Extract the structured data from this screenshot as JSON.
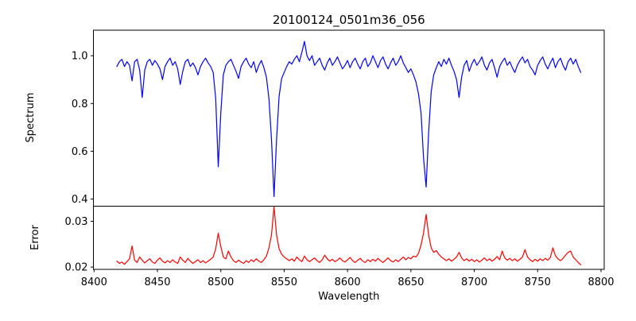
{
  "figure": {
    "background": "#ffffff",
    "frame_color": "#000000",
    "text_color": "#000000"
  },
  "chart_data": [
    {
      "type": "line",
      "series_name": "spectrum",
      "title": "20100124_0501m36_056",
      "ylabel": "Spectrum",
      "line_color": "#0000ff",
      "grid": false,
      "legend": "none",
      "xlim": [
        8399.5,
        8802.5
      ],
      "ylim": [
        0.37,
        1.107
      ],
      "ytick_values": [
        1.0,
        0.8,
        0.6,
        0.4
      ],
      "ytick_labels": [
        "1.0",
        "0.8",
        "0.6",
        "0.4"
      ],
      "x_start": 8418,
      "x_step": 2,
      "y": [
        0.955,
        0.975,
        0.985,
        0.955,
        0.975,
        0.96,
        0.895,
        0.975,
        0.985,
        0.94,
        0.825,
        0.94,
        0.975,
        0.985,
        0.96,
        0.98,
        0.965,
        0.945,
        0.9,
        0.955,
        0.975,
        0.99,
        0.96,
        0.975,
        0.945,
        0.88,
        0.935,
        0.975,
        0.985,
        0.955,
        0.97,
        0.95,
        0.92,
        0.955,
        0.975,
        0.99,
        0.97,
        0.955,
        0.93,
        0.82,
        0.535,
        0.76,
        0.92,
        0.96,
        0.975,
        0.985,
        0.96,
        0.935,
        0.905,
        0.955,
        0.975,
        0.99,
        0.965,
        0.95,
        0.975,
        0.93,
        0.96,
        0.98,
        0.95,
        0.91,
        0.82,
        0.65,
        0.41,
        0.65,
        0.83,
        0.905,
        0.93,
        0.955,
        0.975,
        0.965,
        0.985,
        1.0,
        0.975,
        1.015,
        1.06,
        1.0,
        0.98,
        1.0,
        0.96,
        0.975,
        0.99,
        0.96,
        0.94,
        0.97,
        0.99,
        0.96,
        0.975,
        0.995,
        0.97,
        0.945,
        0.96,
        0.98,
        0.95,
        0.975,
        0.99,
        0.965,
        0.945,
        0.975,
        0.99,
        0.955,
        0.97,
        1.0,
        0.975,
        0.95,
        0.98,
        0.995,
        0.965,
        0.945,
        0.97,
        0.99,
        0.96,
        0.975,
        1.0,
        0.97,
        0.95,
        0.93,
        0.945,
        0.92,
        0.89,
        0.84,
        0.76,
        0.57,
        0.45,
        0.68,
        0.85,
        0.92,
        0.95,
        0.975,
        0.955,
        0.985,
        0.965,
        0.99,
        0.96,
        0.935,
        0.9,
        0.825,
        0.91,
        0.96,
        0.98,
        0.935,
        0.965,
        0.985,
        0.96,
        0.975,
        0.995,
        0.96,
        0.94,
        0.97,
        0.985,
        0.95,
        0.91,
        0.955,
        0.975,
        0.99,
        0.96,
        0.975,
        0.95,
        0.93,
        0.96,
        0.98,
        0.995,
        0.97,
        0.985,
        0.955,
        0.94,
        0.92,
        0.96,
        0.98,
        0.995,
        0.965,
        0.945,
        0.97,
        0.99,
        0.95,
        0.975,
        0.99,
        0.96,
        0.94,
        0.975,
        0.99,
        0.965,
        0.985,
        0.955,
        0.93
      ],
      "absorption_features": [
        {
          "wavelength": 8498,
          "min_value": 0.53
        },
        {
          "wavelength": 8542,
          "min_value": 0.41
        },
        {
          "wavelength": 8662,
          "min_value": 0.45
        }
      ]
    },
    {
      "type": "line",
      "series_name": "error",
      "ylabel": "Error",
      "xlabel": "Wavelength",
      "line_color": "#ff0000",
      "grid": false,
      "legend": "none",
      "xlim": [
        8399.5,
        8802.5
      ],
      "ylim": [
        0.0195,
        0.0333
      ],
      "ytick_values": [
        0.03,
        0.02
      ],
      "ytick_labels": [
        "0.03",
        "0.02"
      ],
      "xtick_values": [
        8400,
        8450,
        8500,
        8550,
        8600,
        8650,
        8700,
        8750,
        8800
      ],
      "xtick_labels": [
        "8400",
        "8450",
        "8500",
        "8550",
        "8600",
        "8650",
        "8700",
        "8750",
        "8800"
      ],
      "x_start": 8418,
      "x_step": 2,
      "y": [
        0.0213,
        0.0208,
        0.0211,
        0.0206,
        0.0212,
        0.0218,
        0.0246,
        0.0215,
        0.021,
        0.0222,
        0.0215,
        0.0209,
        0.0214,
        0.0218,
        0.0211,
        0.0208,
        0.0215,
        0.022,
        0.0213,
        0.0209,
        0.0214,
        0.021,
        0.0216,
        0.0211,
        0.0208,
        0.0222,
        0.0215,
        0.021,
        0.0219,
        0.0213,
        0.0208,
        0.0212,
        0.0216,
        0.021,
        0.0214,
        0.0209,
        0.0213,
        0.0217,
        0.0222,
        0.024,
        0.0274,
        0.0245,
        0.0222,
        0.0218,
        0.0235,
        0.0222,
        0.0214,
        0.021,
        0.0215,
        0.0211,
        0.0208,
        0.0214,
        0.021,
        0.0216,
        0.0212,
        0.0218,
        0.0213,
        0.021,
        0.0216,
        0.0224,
        0.0242,
        0.027,
        0.0332,
        0.027,
        0.024,
        0.0228,
        0.0222,
        0.0218,
        0.0214,
        0.0218,
        0.0213,
        0.0222,
        0.0216,
        0.0212,
        0.0224,
        0.0216,
        0.0212,
        0.0216,
        0.022,
        0.0214,
        0.021,
        0.0216,
        0.0226,
        0.0218,
        0.0213,
        0.0217,
        0.0212,
        0.0215,
        0.022,
        0.0214,
        0.0211,
        0.0216,
        0.0221,
        0.0214,
        0.021,
        0.0215,
        0.0219,
        0.0213,
        0.021,
        0.0216,
        0.0212,
        0.0217,
        0.0213,
        0.0219,
        0.0214,
        0.021,
        0.0215,
        0.022,
        0.0214,
        0.0211,
        0.0216,
        0.0212,
        0.0217,
        0.0222,
        0.0216,
        0.0221,
        0.0218,
        0.0224,
        0.0222,
        0.023,
        0.0248,
        0.0275,
        0.0315,
        0.027,
        0.0242,
        0.0232,
        0.0236,
        0.0228,
        0.0222,
        0.0218,
        0.0214,
        0.0218,
        0.0213,
        0.0217,
        0.0222,
        0.0232,
        0.022,
        0.0214,
        0.0218,
        0.0213,
        0.0217,
        0.0212,
        0.0216,
        0.0211,
        0.0215,
        0.022,
        0.0214,
        0.0218,
        0.0213,
        0.0217,
        0.0223,
        0.0216,
        0.0235,
        0.022,
        0.0215,
        0.0219,
        0.0214,
        0.0218,
        0.0213,
        0.0217,
        0.0222,
        0.0238,
        0.0222,
        0.0216,
        0.0212,
        0.0217,
        0.0213,
        0.0218,
        0.0214,
        0.0219,
        0.0215,
        0.0221,
        0.0242,
        0.0225,
        0.0218,
        0.0214,
        0.0219,
        0.0226,
        0.0232,
        0.0235,
        0.0222,
        0.0216,
        0.021,
        0.0205
      ],
      "error_peaks": [
        {
          "wavelength": 8498,
          "value": 0.027
        },
        {
          "wavelength": 8542,
          "value": 0.033
        },
        {
          "wavelength": 8662,
          "value": 0.032
        }
      ]
    }
  ]
}
